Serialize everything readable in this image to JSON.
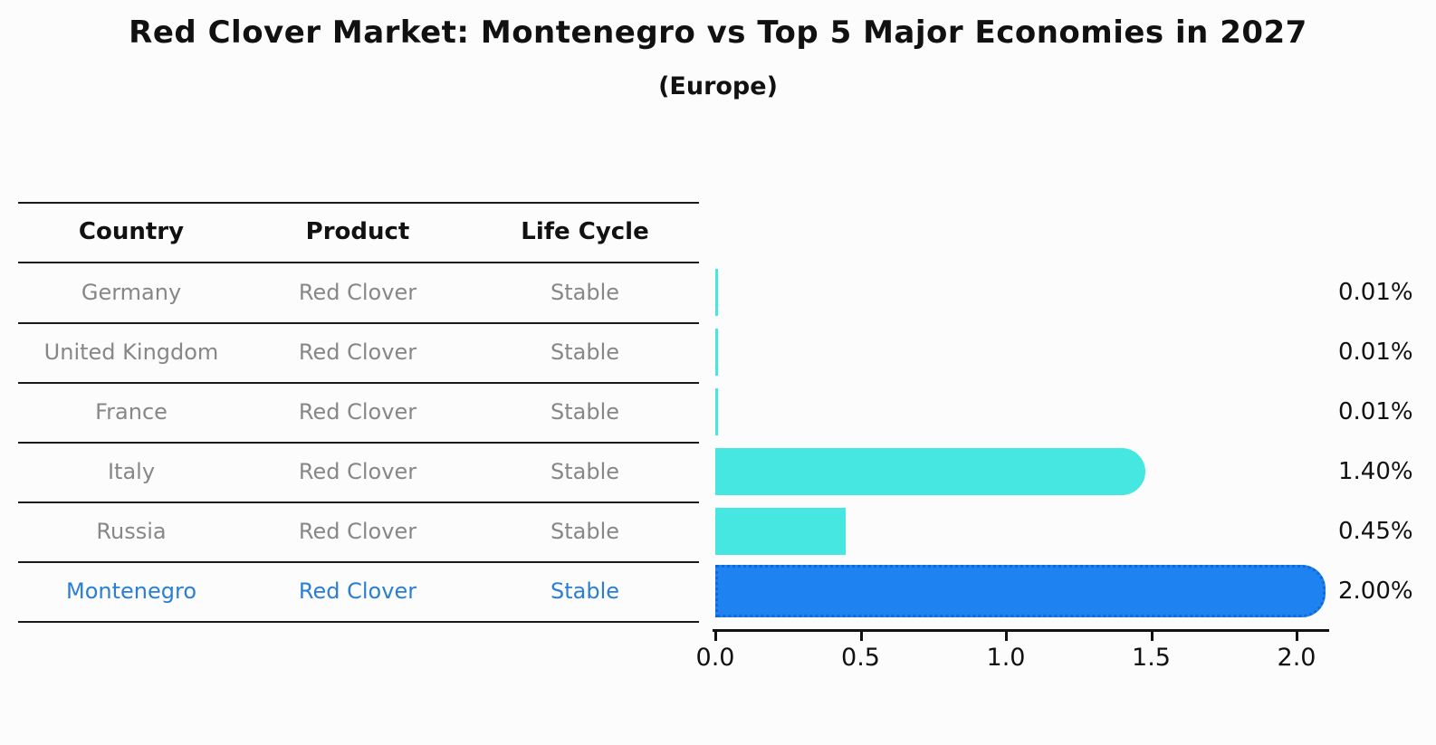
{
  "title": "Red Clover Market: Montenegro vs Top 5 Major Economies in 2027",
  "subtitle": "(Europe)",
  "table": {
    "headers": {
      "country": "Country",
      "product": "Product",
      "life_cycle": "Life Cycle"
    },
    "rows": [
      {
        "country": "Germany",
        "product": "Red Clover",
        "life_cycle": "Stable"
      },
      {
        "country": "United Kingdom",
        "product": "Red Clover",
        "life_cycle": "Stable"
      },
      {
        "country": "France",
        "product": "Red Clover",
        "life_cycle": "Stable"
      },
      {
        "country": "Italy",
        "product": "Red Clover",
        "life_cycle": "Stable"
      },
      {
        "country": "Russia",
        "product": "Red Clover",
        "life_cycle": "Stable"
      },
      {
        "country": "Montenegro",
        "product": "Red Clover",
        "life_cycle": "Stable"
      }
    ]
  },
  "chart_data": {
    "type": "bar",
    "orientation": "horizontal",
    "title": "Red Clover Market: Montenegro vs Top 5 Major Economies in 2027 (Europe)",
    "categories": [
      "Germany",
      "United Kingdom",
      "France",
      "Italy",
      "Russia",
      "Montenegro"
    ],
    "values": [
      0.01,
      0.01,
      0.01,
      1.4,
      0.45,
      2.0
    ],
    "value_labels": [
      "0.01%",
      "0.01%",
      "0.01%",
      "1.40%",
      "0.45%",
      "2.00%"
    ],
    "x_ticks": [
      "0.0",
      "0.5",
      "1.0",
      "1.5",
      "2.0"
    ],
    "xlim": [
      0,
      2.1
    ],
    "grid": false,
    "legend": false,
    "highlight_index": 5,
    "colors": {
      "default_bar": "#46e6e1",
      "highlight_bar": "#1e82f0",
      "highlight_border": "#0f6ad8",
      "highlight_text": "#2a7fd4",
      "text": "#111111",
      "muted_text": "#878787"
    }
  }
}
